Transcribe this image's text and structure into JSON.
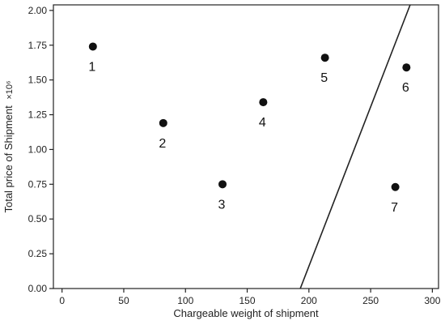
{
  "chart_data": {
    "type": "scatter",
    "xlabel": "Chargeable weight of shipment",
    "ylabel": "Total price of Shipment",
    "ylabel_multiplier": "×10⁶",
    "xlim": [
      -7,
      305
    ],
    "ylim": [
      0,
      2.04
    ],
    "xticks": [
      0,
      50,
      100,
      150,
      200,
      250,
      300
    ],
    "yticks": [
      0.0,
      0.25,
      0.5,
      0.75,
      1.0,
      1.25,
      1.5,
      1.75,
      2.0
    ],
    "xtick_labels": [
      "0",
      "50",
      "100",
      "150",
      "200",
      "250",
      "300"
    ],
    "ytick_labels": [
      "0.00",
      "0.25",
      "0.50",
      "0.75",
      "1.00",
      "1.25",
      "1.50",
      "1.75",
      "2.00"
    ],
    "grid": false,
    "points": [
      {
        "label": "1",
        "x": 25,
        "y": 1.74
      },
      {
        "label": "2",
        "x": 82,
        "y": 1.19
      },
      {
        "label": "3",
        "x": 130,
        "y": 0.75
      },
      {
        "label": "4",
        "x": 163,
        "y": 1.34
      },
      {
        "label": "5",
        "x": 213,
        "y": 1.66
      },
      {
        "label": "6",
        "x": 279,
        "y": 1.59
      },
      {
        "label": "7",
        "x": 270,
        "y": 0.73
      }
    ],
    "line": {
      "x": [
        193,
        282
      ],
      "y": [
        0.0,
        2.04
      ]
    },
    "colors": {
      "marker": "#111111",
      "line": "#222222",
      "axis": "#222222"
    }
  }
}
